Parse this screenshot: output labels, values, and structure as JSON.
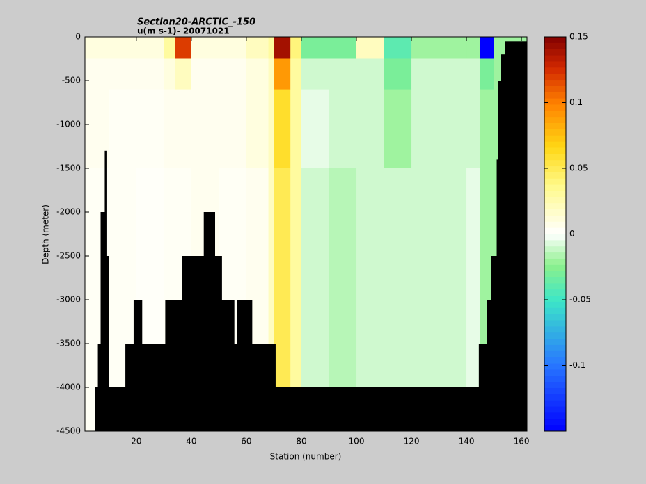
{
  "chart_data": {
    "type": "section",
    "title": "Section20-ARCTIC_-150",
    "subtitle": "u(m s-1)- 20071021",
    "xlabel": "Station (number)",
    "ylabel": "Depth (meter)",
    "xlim": [
      1.3,
      162
    ],
    "ylim": [
      -4500,
      0
    ],
    "xticks": [
      20,
      40,
      60,
      80,
      100,
      120,
      140,
      160
    ],
    "yticks": [
      0,
      -500,
      -1000,
      -1500,
      -2000,
      -2500,
      -3000,
      -3500,
      -4000,
      -4500
    ],
    "x_edges": [
      1,
      10,
      20,
      30,
      34,
      40,
      50,
      60,
      68,
      70,
      76,
      80,
      90,
      100,
      110,
      120,
      130,
      140,
      145,
      150,
      162
    ],
    "depth_edges": [
      0,
      -250,
      -600,
      -1500,
      -4500
    ],
    "z": [
      [
        0.01,
        0.01,
        0.01,
        0.03,
        0.12,
        0.01,
        0.01,
        0.02,
        0.03,
        0.14,
        0.04,
        -0.03,
        -0.03,
        0.02,
        -0.04,
        -0.02,
        -0.02,
        -0.02,
        -0.15,
        -0.02
      ],
      [
        0.005,
        0.005,
        0.005,
        0.01,
        0.02,
        0.005,
        0.005,
        0.01,
        0.02,
        0.09,
        0.03,
        -0.01,
        -0.01,
        -0.01,
        -0.03,
        -0.01,
        -0.01,
        -0.01,
        -0.03,
        -0.02
      ],
      [
        0.005,
        0.003,
        0.003,
        0.005,
        0.005,
        0.005,
        0.005,
        0.01,
        0.02,
        0.06,
        0.03,
        -0.005,
        -0.01,
        -0.01,
        -0.02,
        -0.01,
        -0.01,
        -0.01,
        -0.02,
        -0.02
      ],
      [
        0.003,
        0.003,
        0.002,
        0.003,
        0.003,
        0.005,
        0.003,
        0.005,
        0.02,
        0.05,
        0.03,
        -0.01,
        -0.015,
        -0.01,
        -0.01,
        -0.01,
        -0.01,
        -0.005,
        -0.02,
        -0.02
      ]
    ],
    "bottom_edges": [
      5,
      6,
      7,
      8.5,
      9,
      10,
      16,
      19,
      22,
      30.5,
      36.5,
      44.5,
      48.5,
      51,
      55.5,
      56.5,
      62,
      70.5,
      144.5,
      147.5,
      149,
      151,
      151.5,
      152.5,
      154,
      162
    ],
    "bottom_depth": [
      -4000,
      -3500,
      -2000,
      -1300,
      -2500,
      -4000,
      -3500,
      -3000,
      -3500,
      -3000,
      -2500,
      -2000,
      -2500,
      -3000,
      -3500,
      -3000,
      -3500,
      -4000,
      -3500,
      -3000,
      -2500,
      -1400,
      -500,
      -200,
      -50
    ],
    "clim": [
      -0.15,
      0.15
    ],
    "cticks": [
      0.15,
      0.1,
      0.05,
      0,
      -0.05,
      -0.1
    ],
    "land_color": "#000000"
  }
}
